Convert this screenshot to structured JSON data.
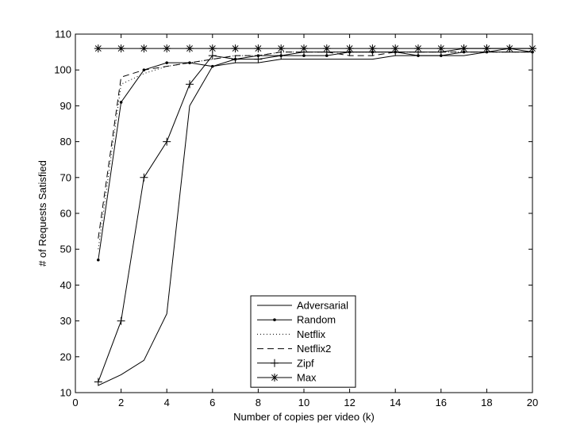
{
  "chart_data": {
    "type": "line",
    "xlabel": "Number of copies per video (k)",
    "ylabel": "# of Requests Satisfied",
    "xlim": [
      0,
      20
    ],
    "ylim": [
      10,
      110
    ],
    "xticks": [
      0,
      2,
      4,
      6,
      8,
      10,
      12,
      14,
      16,
      18,
      20
    ],
    "yticks": [
      10,
      20,
      30,
      40,
      50,
      60,
      70,
      80,
      90,
      100,
      110
    ],
    "grid": false,
    "legend_position": "bottom-center",
    "x": [
      1,
      2,
      3,
      4,
      5,
      6,
      7,
      8,
      9,
      10,
      11,
      12,
      13,
      14,
      15,
      16,
      17,
      18,
      19,
      20
    ],
    "series": [
      {
        "name": "Adversarial",
        "style": "solid",
        "marker": "none",
        "values": [
          12,
          15,
          19,
          32,
          90,
          101,
          102,
          102,
          103,
          103,
          103,
          103,
          103,
          104,
          104,
          104,
          104,
          105,
          105,
          105
        ]
      },
      {
        "name": "Random",
        "style": "solid",
        "marker": "dot",
        "values": [
          47,
          91,
          100,
          102,
          102,
          101,
          103,
          104,
          104,
          104,
          104,
          105,
          105,
          105,
          104,
          104,
          105,
          105,
          106,
          105
        ]
      },
      {
        "name": "Netflix",
        "style": "dotted",
        "marker": "none",
        "values": [
          50,
          96,
          99,
          101,
          102,
          103,
          104,
          104,
          105,
          105,
          105,
          105,
          105,
          105,
          105,
          105,
          105,
          105,
          105,
          105
        ]
      },
      {
        "name": "Netflix2",
        "style": "dashed",
        "marker": "none",
        "values": [
          53,
          98,
          100,
          101,
          102,
          103,
          104,
          104,
          105,
          105,
          105,
          104,
          104,
          105,
          105,
          105,
          105,
          105,
          105,
          105
        ]
      },
      {
        "name": "Zipf",
        "style": "solid",
        "marker": "plus",
        "values": [
          13,
          30,
          70,
          80,
          96,
          104,
          103,
          103,
          104,
          105,
          105,
          105,
          105,
          105,
          105,
          105,
          106,
          106,
          106,
          106
        ]
      },
      {
        "name": "Max",
        "style": "solid",
        "marker": "asterisk",
        "values": [
          106,
          106,
          106,
          106,
          106,
          106,
          106,
          106,
          106,
          106,
          106,
          106,
          106,
          106,
          106,
          106,
          106,
          106,
          106,
          106
        ]
      }
    ]
  }
}
